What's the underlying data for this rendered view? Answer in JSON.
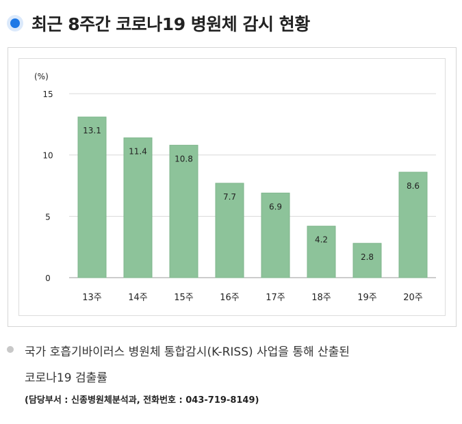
{
  "title": "최근 8주간 코로나19 병원체 감시 현황",
  "chart_data": {
    "type": "bar",
    "unit_label": "(%)",
    "categories": [
      "13주",
      "14주",
      "15주",
      "16주",
      "17주",
      "18주",
      "19주",
      "20주"
    ],
    "values": [
      13.1,
      11.4,
      10.8,
      7.7,
      6.9,
      4.2,
      2.8,
      8.6
    ],
    "value_labels": [
      "13.1",
      "11.4",
      "10.8",
      "7.7",
      "6.9",
      "4.2",
      "2.8",
      "8.6"
    ],
    "yticks": [
      "0",
      "5",
      "10",
      "15"
    ],
    "ylim": [
      0,
      15
    ],
    "bar_color": "#8dc39a",
    "grid": true
  },
  "note": {
    "text_line1": "국가 호흡기바이러스 병원체 통합감시(K-RISS) 사업을 통해 산출된",
    "text_line2": "코로나19 검출률",
    "contact": "(담당부서 : 신종병원체분석과, 전화번호 : 043-719-8149)"
  }
}
